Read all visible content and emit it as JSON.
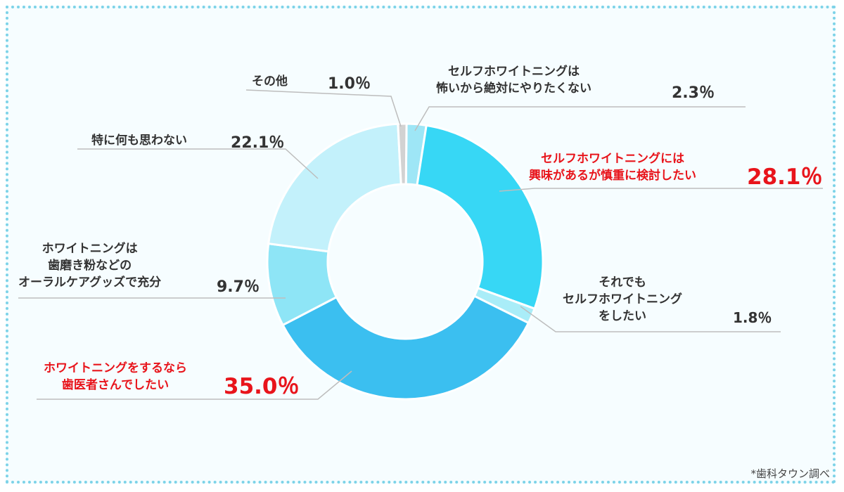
{
  "chart_data": {
    "type": "pie",
    "slices": [
      {
        "label_lines": [
          "セルフホワイトニングは",
          "怖いから絶対にやりたくない"
        ],
        "value_label": "2.3％",
        "value": 2.3,
        "color": "#9ee6f6",
        "highlight": false
      },
      {
        "label_lines": [
          "セルフホワイトニングには",
          "興味があるが慎重に検討したい"
        ],
        "value_label": "28.1％",
        "value": 28.1,
        "color": "#37d7f5",
        "highlight": true
      },
      {
        "label_lines": [
          "それでも",
          "セルフホワイトニング",
          "をしたい"
        ],
        "value_label": "1.8％",
        "value": 1.8,
        "color": "#a9edf8",
        "highlight": false
      },
      {
        "label_lines": [
          "ホワイトニングをするなら",
          "歯医者さんでしたい"
        ],
        "value_label": "35.0％",
        "value": 35.0,
        "color": "#3bbff0",
        "highlight": true
      },
      {
        "label_lines": [
          "ホワイトニングは",
          "歯磨き粉などの",
          "オーラルケアグッズで充分"
        ],
        "value_label": "9.7％",
        "value": 9.7,
        "color": "#8ee5f6",
        "highlight": false
      },
      {
        "label_lines": [
          "特に何も思わない"
        ],
        "value_label": "22.1％",
        "value": 22.1,
        "color": "#c3f1fb",
        "highlight": false
      },
      {
        "label_lines": [
          "その他"
        ],
        "value_label": "1.0％",
        "value": 1.0,
        "color": "#d2d2d2",
        "highlight": false
      }
    ],
    "note": "*歯科タウン調べ"
  }
}
